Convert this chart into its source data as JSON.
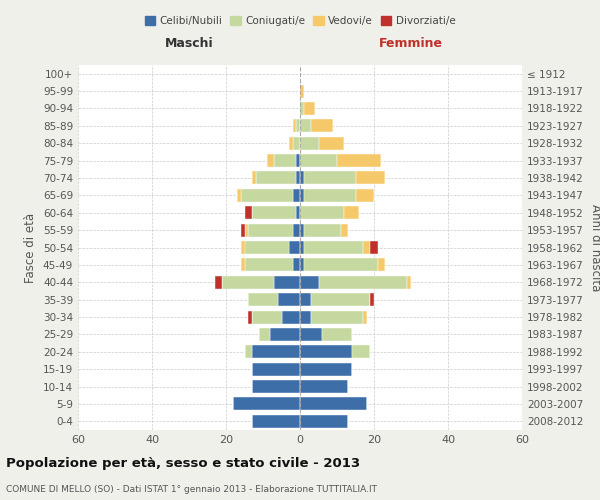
{
  "age_groups": [
    "0-4",
    "5-9",
    "10-14",
    "15-19",
    "20-24",
    "25-29",
    "30-34",
    "35-39",
    "40-44",
    "45-49",
    "50-54",
    "55-59",
    "60-64",
    "65-69",
    "70-74",
    "75-79",
    "80-84",
    "85-89",
    "90-94",
    "95-99",
    "100+"
  ],
  "birth_years": [
    "2008-2012",
    "2003-2007",
    "1998-2002",
    "1993-1997",
    "1988-1992",
    "1983-1987",
    "1978-1982",
    "1973-1977",
    "1968-1972",
    "1963-1967",
    "1958-1962",
    "1953-1957",
    "1948-1952",
    "1943-1947",
    "1938-1942",
    "1933-1937",
    "1928-1932",
    "1923-1927",
    "1918-1922",
    "1913-1917",
    "≤ 1912"
  ],
  "colors": {
    "celibe": "#3d6ea8",
    "coniugato": "#c5d8a0",
    "vedovo": "#f5c96a",
    "divorziato": "#c0312b"
  },
  "males": {
    "celibe": [
      13,
      18,
      13,
      13,
      13,
      8,
      5,
      6,
      7,
      2,
      3,
      2,
      1,
      2,
      1,
      1,
      0,
      0,
      0,
      0,
      0
    ],
    "coniugato": [
      0,
      0,
      0,
      0,
      2,
      3,
      8,
      8,
      14,
      13,
      12,
      12,
      12,
      14,
      11,
      6,
      2,
      1,
      0,
      0,
      0
    ],
    "vedovo": [
      0,
      0,
      0,
      0,
      0,
      0,
      0,
      0,
      0,
      1,
      1,
      1,
      0,
      1,
      1,
      2,
      1,
      1,
      0,
      0,
      0
    ],
    "divorziato": [
      0,
      0,
      0,
      0,
      0,
      0,
      1,
      0,
      2,
      0,
      0,
      1,
      2,
      0,
      0,
      0,
      0,
      0,
      0,
      0,
      0
    ]
  },
  "females": {
    "nubile": [
      13,
      18,
      13,
      14,
      14,
      6,
      3,
      3,
      5,
      1,
      1,
      1,
      0,
      1,
      1,
      0,
      0,
      0,
      0,
      0,
      0
    ],
    "coniugata": [
      0,
      0,
      0,
      0,
      5,
      8,
      14,
      16,
      24,
      20,
      16,
      10,
      12,
      14,
      14,
      10,
      5,
      3,
      1,
      0,
      0
    ],
    "vedova": [
      0,
      0,
      0,
      0,
      0,
      0,
      1,
      0,
      1,
      2,
      2,
      2,
      4,
      5,
      8,
      12,
      7,
      6,
      3,
      1,
      0
    ],
    "divorziata": [
      0,
      0,
      0,
      0,
      0,
      0,
      0,
      1,
      0,
      0,
      2,
      0,
      0,
      0,
      0,
      0,
      0,
      0,
      0,
      0,
      0
    ]
  },
  "xlim": 60,
  "title": "Popolazione per età, sesso e stato civile - 2013",
  "subtitle": "COMUNE DI MELLO (SO) - Dati ISTAT 1° gennaio 2013 - Elaborazione TUTTITALIA.IT",
  "xlabel_left": "Maschi",
  "xlabel_right": "Femmine",
  "ylabel_left": "Fasce di età",
  "ylabel_right": "Anni di nascita",
  "background": "#f0f0eb",
  "plot_background": "#ffffff"
}
